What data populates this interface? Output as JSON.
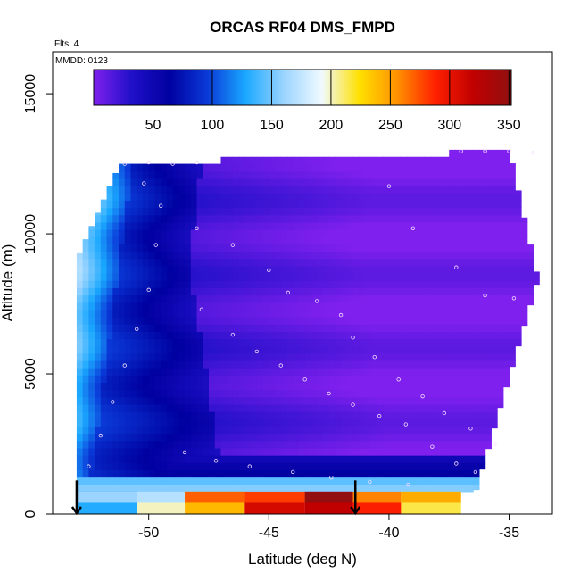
{
  "chart_data": {
    "type": "heatmap",
    "title": "ORCAS RF04 DMS_FMPD",
    "subtitle_flights": "Flts: 4",
    "subtitle_date": "MMDD: 0123",
    "xlabel": "Latitude (deg N)",
    "ylabel": "Altitude (m)",
    "xlim": [
      -54,
      -33.2
    ],
    "ylim": [
      0,
      16500
    ],
    "x_ticks": [
      -50,
      -45,
      -40,
      -35
    ],
    "x_tick_labels": [
      "-50",
      "-45",
      "-40",
      "-35"
    ],
    "y_ticks": [
      0,
      5000,
      10000,
      15000
    ],
    "y_tick_labels": [
      "0",
      "5000",
      "10000",
      "15000"
    ],
    "colorbar": {
      "min": 0,
      "max": 352,
      "ticks": [
        50,
        100,
        150,
        200,
        250,
        300,
        350
      ],
      "tick_labels": [
        "50",
        "100",
        "150",
        "200",
        "250",
        "300",
        "350"
      ],
      "colors": [
        "#8020ee",
        "#2010c8",
        "#0000a0",
        "#0a3ad8",
        "#1aa8ff",
        "#9ad4ff",
        "#f0faff",
        "#ffe000",
        "#ff9000",
        "#ff2000",
        "#c00000",
        "#901010"
      ]
    },
    "field_bounds": {
      "lat_min": -53.0,
      "lat_max": -33.5,
      "alt_min": 800,
      "alt_max": 13000
    },
    "surface_band": {
      "alt_top": 800,
      "alt_bottom": 0,
      "segments": [
        {
          "lat_from": -53.0,
          "lat_to": -50.5,
          "value": 130
        },
        {
          "lat_from": -50.5,
          "lat_to": -48.5,
          "value": 170
        },
        {
          "lat_from": -48.5,
          "lat_to": -46.0,
          "value": 240
        },
        {
          "lat_from": -46.0,
          "lat_to": -43.5,
          "value": 280
        },
        {
          "lat_from": -43.5,
          "lat_to": -41.5,
          "value": 320
        },
        {
          "lat_from": -41.5,
          "lat_to": -39.5,
          "value": 260
        },
        {
          "lat_from": -39.5,
          "lat_to": -37.0,
          "value": 215
        }
      ]
    },
    "arrows": [
      {
        "lat": -53.0
      },
      {
        "lat": -41.4
      }
    ],
    "sample_points": [
      [
        -51.0,
        12500
      ],
      [
        -50.0,
        12550
      ],
      [
        -49.0,
        12500
      ],
      [
        -48.0,
        12550
      ],
      [
        -37.0,
        12950
      ],
      [
        -36.0,
        12950
      ],
      [
        -35.0,
        12950
      ],
      [
        -34.0,
        12900
      ],
      [
        -50.2,
        11800
      ],
      [
        -49.5,
        11000
      ],
      [
        -48.0,
        10200
      ],
      [
        -46.5,
        9600
      ],
      [
        -45.0,
        8700
      ],
      [
        -44.2,
        7900
      ],
      [
        -43.0,
        7600
      ],
      [
        -42.0,
        7100
      ],
      [
        -41.5,
        6300
      ],
      [
        -40.6,
        5600
      ],
      [
        -39.6,
        4800
      ],
      [
        -38.6,
        4200
      ],
      [
        -37.7,
        3600
      ],
      [
        -36.6,
        3050
      ],
      [
        -35.6,
        2500
      ],
      [
        -40.0,
        11700
      ],
      [
        -39.0,
        10200
      ],
      [
        -37.2,
        8800
      ],
      [
        -36.0,
        7800
      ],
      [
        -34.8,
        7700
      ],
      [
        -47.8,
        7300
      ],
      [
        -46.5,
        6400
      ],
      [
        -45.5,
        5800
      ],
      [
        -44.5,
        5300
      ],
      [
        -43.5,
        4800
      ],
      [
        -42.5,
        4300
      ],
      [
        -41.5,
        3900
      ],
      [
        -40.4,
        3500
      ],
      [
        -39.3,
        3200
      ],
      [
        -38.2,
        2400
      ],
      [
        -37.2,
        1800
      ],
      [
        -36.4,
        1500
      ],
      [
        -48.5,
        2200
      ],
      [
        -47.2,
        1900
      ],
      [
        -45.8,
        1700
      ],
      [
        -44.0,
        1500
      ],
      [
        -42.4,
        1300
      ],
      [
        -40.8,
        1150
      ],
      [
        -39.2,
        1050
      ],
      [
        -52.5,
        1700
      ],
      [
        -52.0,
        2800
      ],
      [
        -51.5,
        4000
      ],
      [
        -51.0,
        5300
      ],
      [
        -50.5,
        6600
      ],
      [
        -50.0,
        8000
      ],
      [
        -49.7,
        9600
      ]
    ]
  }
}
